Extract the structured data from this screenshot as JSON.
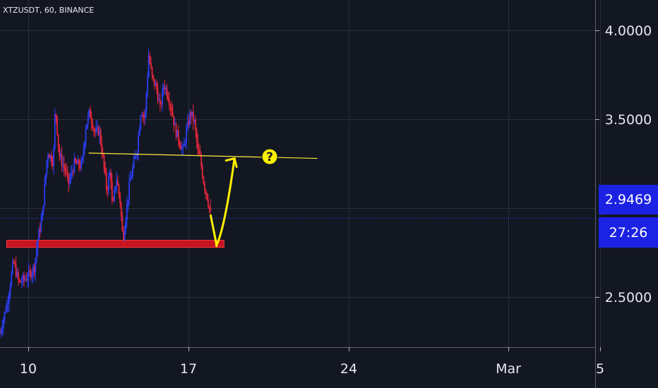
{
  "chart_data": {
    "type": "candlestick",
    "symbol_label": "XTZUSDT, 60, BINANCE",
    "x_ticks": [
      "10",
      "17",
      "24",
      "Mar",
      "5"
    ],
    "y_ticks": [
      "4.0000",
      "3.5000",
      "2.5000"
    ],
    "ylim": [
      2.22,
      4.17
    ],
    "grid": true,
    "current_price": "2.9469",
    "countdown": "27:26",
    "price_path": [
      [
        0,
        2.3
      ],
      [
        8,
        2.48
      ],
      [
        14,
        2.7
      ],
      [
        20,
        2.58
      ],
      [
        30,
        2.62
      ],
      [
        36,
        2.67
      ],
      [
        40,
        2.84
      ],
      [
        44,
        2.94
      ],
      [
        50,
        3.32
      ],
      [
        56,
        3.26
      ],
      [
        58,
        3.58
      ],
      [
        62,
        3.3
      ],
      [
        68,
        3.22
      ],
      [
        72,
        3.14
      ],
      [
        78,
        3.25
      ],
      [
        86,
        3.24
      ],
      [
        90,
        3.46
      ],
      [
        94,
        3.54
      ],
      [
        100,
        3.42
      ],
      [
        104,
        3.44
      ],
      [
        108,
        3.28
      ],
      [
        112,
        3.1
      ],
      [
        116,
        3.22
      ],
      [
        118,
        2.98
      ],
      [
        122,
        3.18
      ],
      [
        126,
        3.04
      ],
      [
        129,
        2.82
      ],
      [
        132,
        2.96
      ],
      [
        136,
        3.14
      ],
      [
        140,
        3.24
      ],
      [
        144,
        3.34
      ],
      [
        148,
        3.56
      ],
      [
        152,
        3.5
      ],
      [
        156,
        3.86
      ],
      [
        160,
        3.72
      ],
      [
        164,
        3.68
      ],
      [
        168,
        3.56
      ],
      [
        172,
        3.7
      ],
      [
        176,
        3.64
      ],
      [
        180,
        3.56
      ],
      [
        184,
        3.44
      ],
      [
        188,
        3.38
      ],
      [
        192,
        3.32
      ],
      [
        196,
        3.44
      ],
      [
        200,
        3.54
      ],
      [
        204,
        3.48
      ],
      [
        208,
        3.3
      ],
      [
        210,
        3.28
      ],
      [
        214,
        3.14
      ],
      [
        218,
        3.05
      ],
      [
        221,
        2.96
      ]
    ],
    "series": [
      {
        "name": "resistance",
        "x": [
          93,
          333
        ],
        "y": [
          3.31,
          3.28
        ]
      },
      {
        "name": "projection",
        "x": [
          221,
          227,
          233,
          246
        ],
        "y": [
          2.96,
          2.79,
          2.85,
          3.28
        ]
      }
    ],
    "zones": [
      {
        "from": 2.78,
        "to": 2.82,
        "x_start": 7,
        "x_end": 235
      }
    ],
    "annotations": [
      {
        "label": "?",
        "x": 283,
        "y": 3.29
      }
    ]
  }
}
